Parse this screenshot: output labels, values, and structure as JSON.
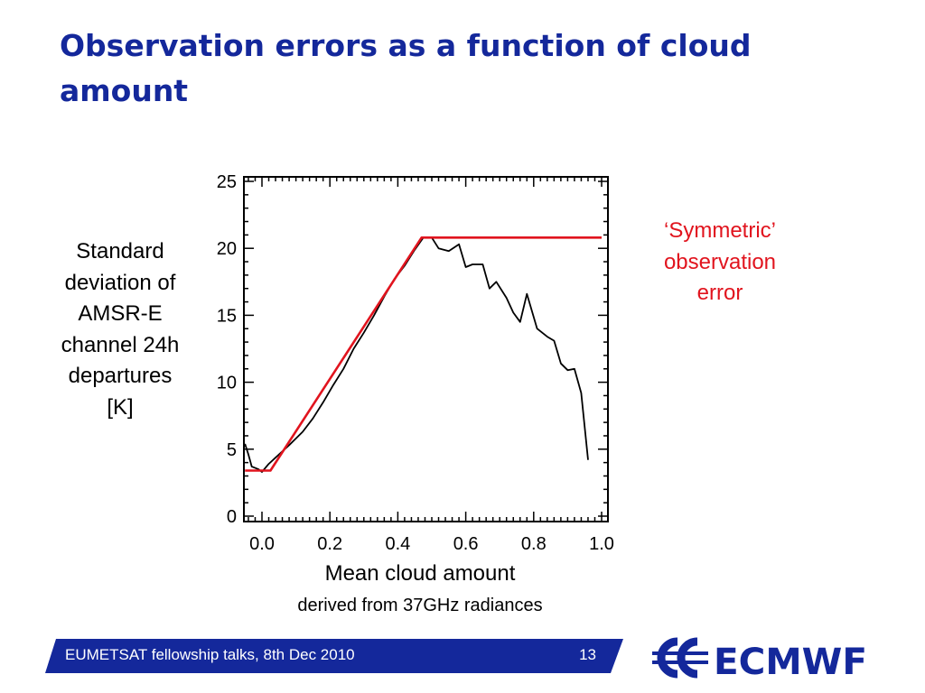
{
  "slide": {
    "title": "Observation errors as a function of cloud amount",
    "ylabel": "Standard\ndeviation of\nAMSR-E\nchannel 24h\ndepartures\n[K]",
    "annotation": "‘Symmetric’\nobservation\nerror",
    "xlabel": "Mean cloud amount",
    "xlabel_sub": "derived from 37GHz radiances",
    "footer_text": "EUMETSAT fellowship talks, 8th Dec 2010",
    "page_number": "13",
    "logo_text": "ECMWF"
  },
  "colors": {
    "title": "#14289b",
    "footer_bar": "#14289b",
    "observed_line": "#000000",
    "error_model_line": "#e1141e"
  },
  "chart_data": {
    "type": "line",
    "xlim": [
      -0.05,
      1.0
    ],
    "ylim": [
      0,
      25
    ],
    "xticks": [
      0.0,
      0.2,
      0.4,
      0.6,
      0.8,
      1.0
    ],
    "xtick_labels": [
      "0.0",
      "0.2",
      "0.4",
      "0.6",
      "0.8",
      "1.0"
    ],
    "yticks": [
      0,
      5,
      10,
      15,
      20,
      25
    ],
    "ytick_labels": [
      "0",
      "5",
      "10",
      "15",
      "20",
      "25"
    ],
    "grid": false,
    "series": [
      {
        "color": "#000000",
        "x": [
          -0.05,
          -0.04,
          -0.03,
          -0.01,
          0.0,
          0.02,
          0.05,
          0.08,
          0.12,
          0.15,
          0.18,
          0.21,
          0.24,
          0.27,
          0.3,
          0.33,
          0.36,
          0.39,
          0.42,
          0.45,
          0.475,
          0.5,
          0.52,
          0.55,
          0.58,
          0.6,
          0.62,
          0.65,
          0.67,
          0.69,
          0.72,
          0.74,
          0.76,
          0.78,
          0.81,
          0.84,
          0.86,
          0.88,
          0.9,
          0.92,
          0.94,
          0.96
        ],
        "values": [
          5.4,
          4.6,
          3.7,
          3.5,
          3.3,
          3.9,
          4.6,
          5.3,
          6.3,
          7.3,
          8.5,
          9.8,
          11.0,
          12.5,
          13.7,
          15.0,
          16.4,
          17.7,
          18.7,
          19.9,
          20.8,
          20.8,
          20.0,
          19.8,
          20.3,
          18.6,
          18.8,
          18.8,
          17.0,
          17.5,
          16.3,
          15.2,
          14.5,
          16.6,
          14.0,
          13.4,
          13.1,
          11.4,
          10.9,
          11.0,
          9.2,
          4.2
        ]
      },
      {
        "color": "#e1141e",
        "x": [
          -0.05,
          0.025,
          0.47,
          1.0
        ],
        "values": [
          3.4,
          3.4,
          20.8,
          20.8
        ]
      }
    ]
  }
}
